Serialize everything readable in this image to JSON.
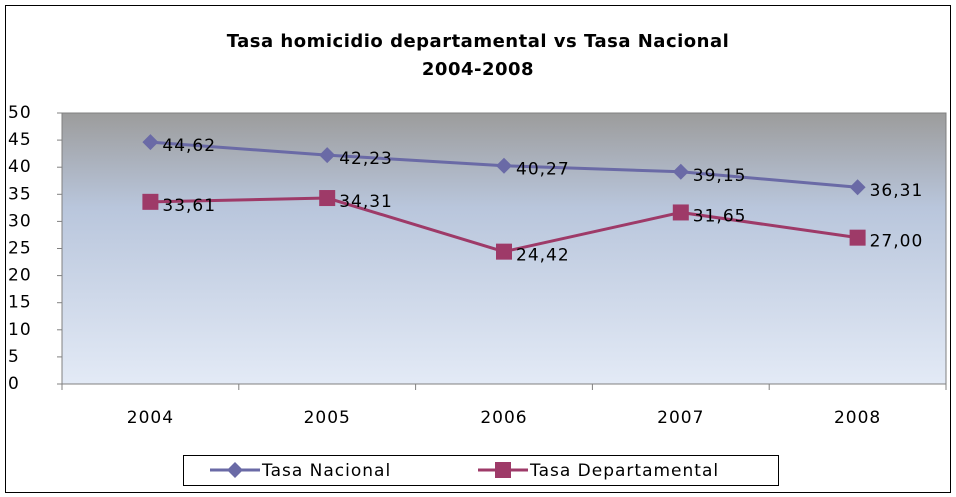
{
  "chart_data": {
    "type": "line",
    "title": "Tasa homicidio departamental vs Tasa Nacional",
    "subtitle": "2004-2008",
    "categories": [
      "2004",
      "2005",
      "2006",
      "2007",
      "2008"
    ],
    "series": [
      {
        "name": "Tasa Nacional",
        "color": "#6a6aa6",
        "marker": "diamond",
        "values": [
          44.62,
          42.23,
          40.27,
          39.15,
          36.31
        ],
        "value_labels": [
          "44,62",
          "42,23",
          "40,27",
          "39,15",
          "36,31"
        ]
      },
      {
        "name": "Tasa Departamental",
        "color": "#9e3a68",
        "marker": "square",
        "values": [
          33.61,
          34.31,
          24.42,
          31.65,
          27.0
        ],
        "value_labels": [
          "33,61",
          "34,31",
          "24,42",
          "31,65",
          "27,00"
        ]
      }
    ],
    "ylim": [
      0,
      50
    ],
    "yticks": [
      0,
      5,
      10,
      15,
      20,
      25,
      30,
      35,
      40,
      45,
      50
    ],
    "grid": false,
    "legend": "bottom"
  }
}
